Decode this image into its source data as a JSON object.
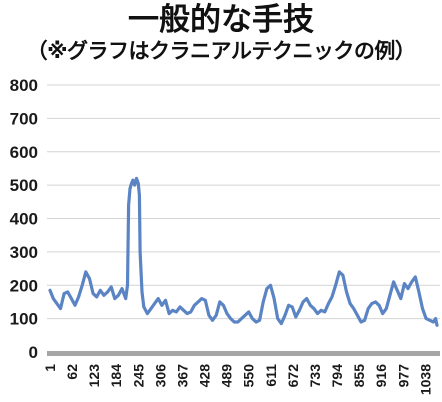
{
  "title": "一般的な手技",
  "subtitle": "（※グラフはクラニアルテクニックの例）",
  "chart_data": {
    "type": "line",
    "title": "一般的な手技",
    "subtitle": "（※グラフはクラニアルテクニックの例）",
    "xlabel": "",
    "ylabel": "",
    "ylim": [
      0,
      800
    ],
    "yticks": [
      0,
      100,
      200,
      300,
      400,
      500,
      600,
      700,
      800
    ],
    "xlim": [
      1,
      1070
    ],
    "xticks": [
      1,
      62,
      123,
      184,
      245,
      306,
      367,
      428,
      489,
      550,
      611,
      672,
      733,
      794,
      855,
      916,
      977,
      1038
    ],
    "grid": true,
    "legend": "none",
    "line_color": "#5b84c4",
    "grid_color": "#d4d4d4",
    "axis_color": "#a6a6a6",
    "series": [
      {
        "x": [
          1,
          10,
          20,
          30,
          40,
          50,
          60,
          70,
          80,
          90,
          100,
          110,
          120,
          130,
          140,
          150,
          160,
          170,
          180,
          190,
          200,
          210,
          215,
          218,
          222,
          226,
          230,
          235,
          240,
          245,
          248,
          250,
          255,
          260,
          270,
          280,
          290,
          300,
          310,
          320,
          330,
          340,
          350,
          360,
          370,
          380,
          390,
          400,
          410,
          420,
          430,
          440,
          450,
          460,
          470,
          480,
          490,
          500,
          510,
          520,
          530,
          540,
          550,
          560,
          570,
          580,
          590,
          600,
          610,
          620,
          630,
          640,
          650,
          660,
          670,
          680,
          690,
          700,
          710,
          720,
          730,
          740,
          750,
          760,
          770,
          780,
          790,
          800,
          810,
          820,
          830,
          840,
          850,
          860,
          870,
          880,
          890,
          900,
          910,
          920,
          930,
          940,
          950,
          960,
          970,
          980,
          990,
          1000,
          1010,
          1020,
          1030,
          1040,
          1050,
          1060,
          1066,
          1070
        ],
        "y": [
          185,
          160,
          145,
          130,
          175,
          180,
          160,
          140,
          165,
          200,
          240,
          220,
          175,
          165,
          185,
          170,
          180,
          195,
          160,
          170,
          190,
          160,
          200,
          440,
          490,
          505,
          515,
          500,
          520,
          505,
          470,
          300,
          180,
          135,
          115,
          130,
          145,
          160,
          140,
          155,
          115,
          125,
          120,
          135,
          125,
          115,
          120,
          140,
          150,
          160,
          155,
          110,
          95,
          110,
          150,
          140,
          115,
          100,
          90,
          90,
          100,
          110,
          120,
          100,
          90,
          95,
          150,
          190,
          200,
          160,
          100,
          85,
          110,
          140,
          135,
          105,
          125,
          150,
          160,
          140,
          130,
          115,
          125,
          120,
          145,
          165,
          200,
          240,
          230,
          180,
          145,
          130,
          110,
          90,
          95,
          130,
          145,
          150,
          140,
          115,
          130,
          170,
          210,
          185,
          160,
          205,
          190,
          210,
          225,
          180,
          130,
          100,
          95,
          90,
          100,
          80
        ]
      }
    ]
  }
}
